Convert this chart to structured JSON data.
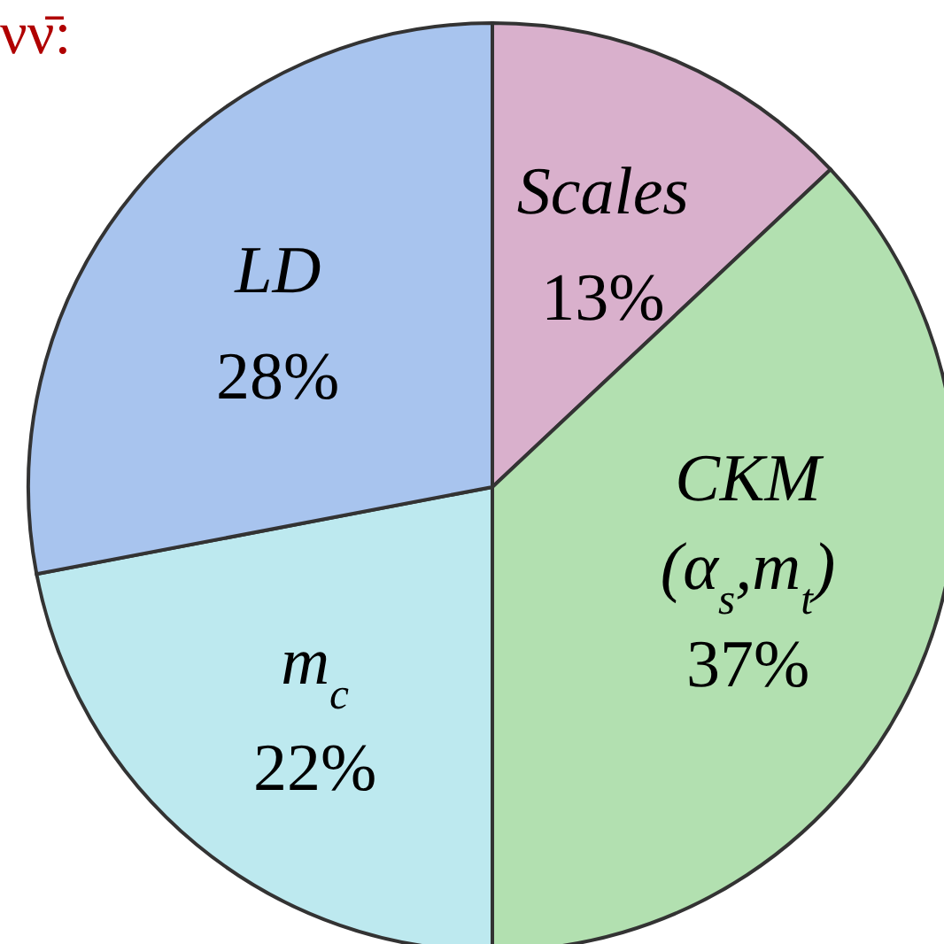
{
  "chart_data": {
    "type": "pie",
    "title": "νν̄:",
    "categories": [
      "Scales",
      "CKM (α$_{s}$,m$_{t}$)",
      "m$_{c}$",
      "LD"
    ],
    "values": [
      13,
      37,
      22,
      28
    ],
    "colors": [
      "#d9b0cc",
      "#b2e0b0",
      "#bde9ef",
      "#a8c4ee"
    ],
    "value_labels": [
      "13%",
      "37%",
      "22%",
      "28%"
    ]
  }
}
